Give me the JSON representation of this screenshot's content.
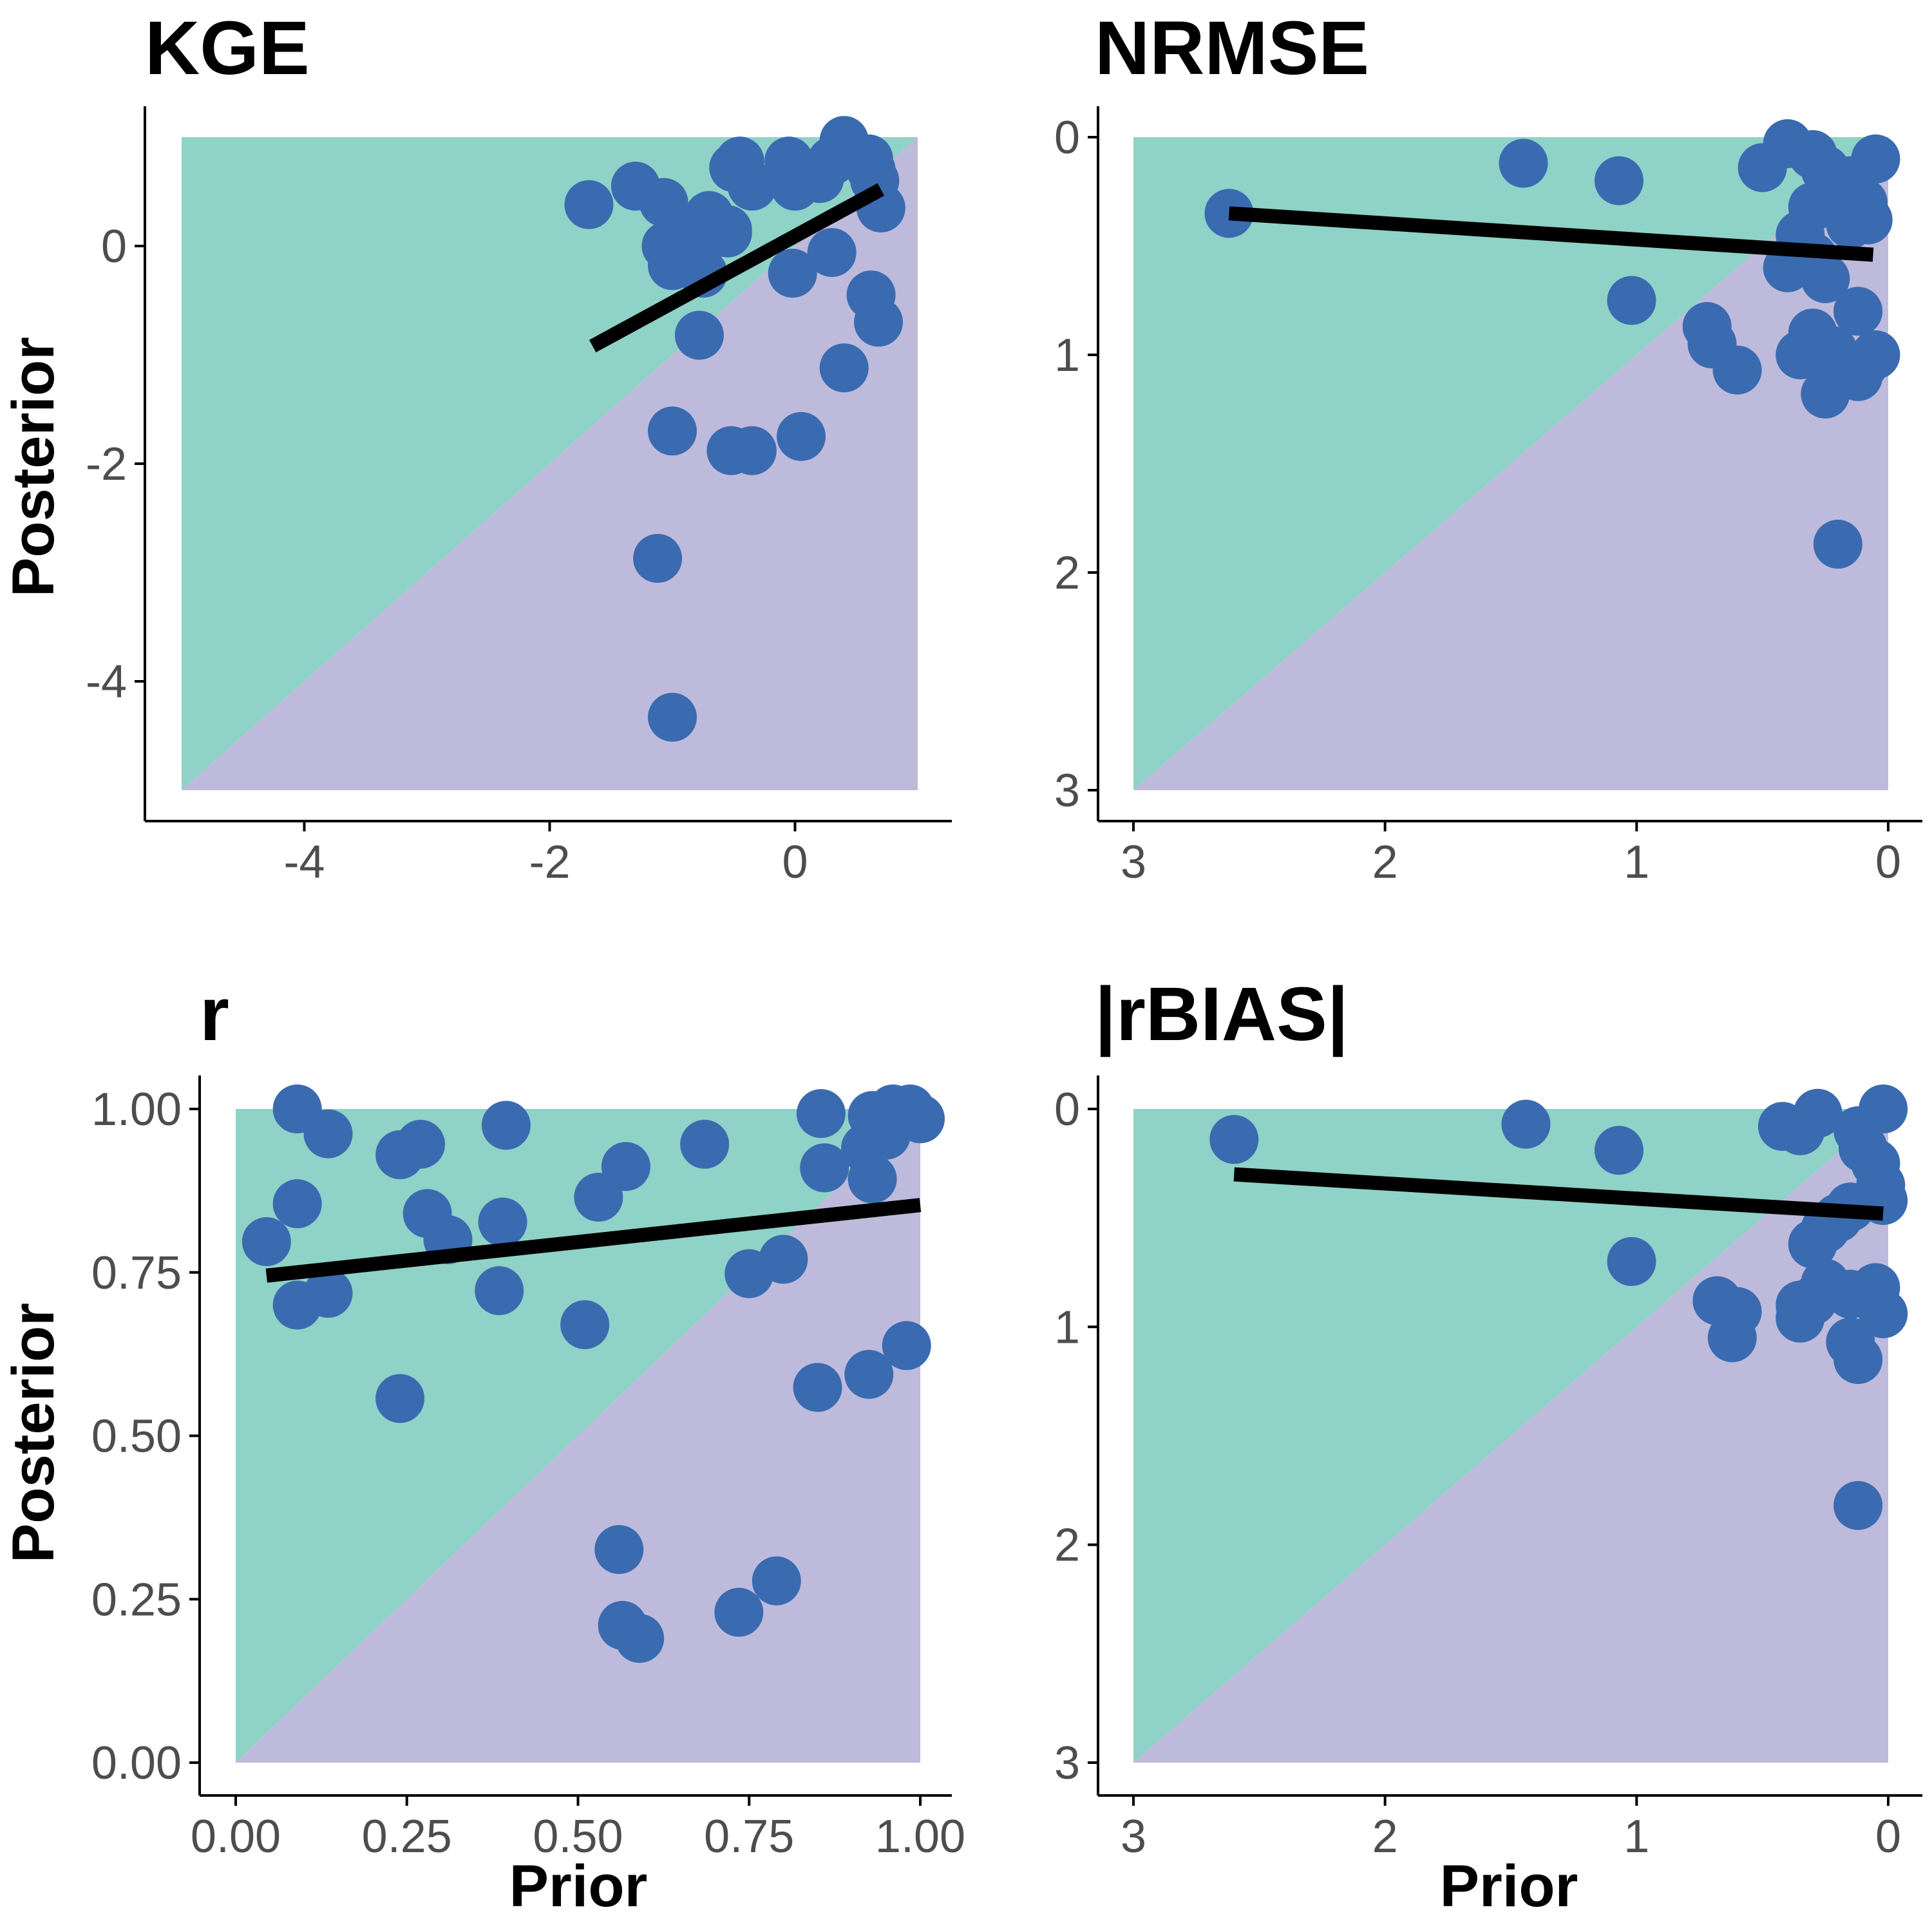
{
  "figure": {
    "xlabel": "Prior",
    "ylabel": "Posterior"
  },
  "colors": {
    "improved_region": "#8fd2c7",
    "worsened_region": "#bebadb",
    "points": "#3a6bb1",
    "fit_line": "#000000",
    "axis": "#000000",
    "tick_text": "#4d4d4d"
  },
  "chart_data": [
    {
      "type": "scatter",
      "title": "KGE",
      "xlabel": "",
      "ylabel": "Posterior",
      "xlim": [
        -5,
        1
      ],
      "ylim": [
        -5,
        1
      ],
      "x_reversed": false,
      "y_reversed": false,
      "xticks": [
        -4,
        -2,
        0
      ],
      "xtick_labels": [
        "-4",
        "-2",
        "0"
      ],
      "yticks": [
        0,
        -2,
        -4
      ],
      "ytick_labels": [
        "0",
        "-2",
        "-4"
      ],
      "grid": false,
      "regions": [
        "above 1:1 line",
        "below 1:1 line"
      ],
      "fit_line": {
        "x": [
          -1.65,
          0.7
        ],
        "y": [
          -0.92,
          0.52
        ]
      },
      "points": {
        "x": [
          -1.68,
          -1.3,
          -1.07,
          -0.92,
          -0.5,
          -0.45,
          -0.35,
          -0.05,
          0.0,
          0.2,
          0.3,
          0.4,
          0.6,
          0.62,
          0.7,
          0.65,
          -0.55,
          -0.7,
          -0.8,
          -1.0,
          -1.05,
          -0.75,
          -0.55,
          -0.02,
          0.3,
          0.62,
          0.68,
          -0.78,
          0.4,
          -1.0,
          -0.52,
          -0.35,
          0.05,
          -1.12,
          -1.0
        ],
        "y": [
          0.38,
          0.55,
          0.4,
          0.06,
          0.72,
          0.78,
          0.55,
          0.78,
          0.55,
          0.62,
          0.78,
          0.97,
          0.8,
          0.7,
          0.35,
          0.6,
          0.12,
          0.28,
          -0.02,
          -0.18,
          0.0,
          -0.25,
          0.15,
          -0.25,
          -0.06,
          -0.45,
          -0.7,
          -0.82,
          -1.12,
          -1.7,
          -1.88,
          -1.88,
          -1.75,
          -2.87,
          -4.33
        ]
      }
    },
    {
      "type": "scatter",
      "title": "NRMSE",
      "xlabel": "",
      "ylabel": "",
      "xlim": [
        3,
        0
      ],
      "ylim": [
        3,
        0
      ],
      "x_reversed": true,
      "y_reversed": true,
      "xticks": [
        3,
        2,
        1,
        0
      ],
      "xtick_labels": [
        "3",
        "2",
        "1",
        "0"
      ],
      "yticks": [
        0,
        1,
        2,
        3
      ],
      "ytick_labels": [
        "0",
        "1",
        "2",
        "3"
      ],
      "grid": false,
      "regions": [
        "above 1:1 line",
        "below 1:1 line"
      ],
      "fit_line": {
        "x": [
          2.62,
          0.06
        ],
        "y": [
          0.35,
          0.54
        ]
      },
      "points": {
        "x": [
          2.62,
          1.45,
          1.07,
          0.4,
          0.5,
          0.3,
          0.25,
          0.15,
          0.1,
          0.05,
          0.2,
          0.3,
          0.35,
          0.08,
          0.15,
          0.4,
          0.3,
          0.25,
          0.12,
          1.02,
          0.7,
          0.72,
          0.6,
          0.3,
          0.35,
          0.22,
          0.1,
          0.05,
          0.25,
          0.12,
          0.2
        ],
        "y": [
          0.35,
          0.12,
          0.2,
          0.03,
          0.14,
          0.08,
          0.15,
          0.2,
          0.3,
          0.1,
          0.25,
          0.32,
          0.45,
          0.38,
          0.4,
          0.6,
          0.55,
          0.65,
          0.8,
          0.75,
          0.95,
          0.87,
          1.07,
          0.9,
          1.0,
          0.98,
          1.05,
          1.0,
          1.18,
          1.1,
          1.87
        ]
      }
    },
    {
      "type": "scatter",
      "title": "r",
      "xlabel": "Prior",
      "ylabel": "Posterior",
      "xlim": [
        0,
        1
      ],
      "ylim": [
        0,
        1
      ],
      "x_reversed": false,
      "y_reversed": false,
      "xticks": [
        0,
        0.25,
        0.5,
        0.75,
        1
      ],
      "xtick_labels": [
        "0.00",
        "0.25",
        "0.50",
        "0.75",
        "1.00"
      ],
      "yticks": [
        1,
        0.75,
        0.5,
        0.25,
        0
      ],
      "ytick_labels": [
        "1.00",
        "0.75",
        "0.50",
        "0.25",
        "0.00"
      ],
      "grid": false,
      "regions": [
        "above 1:1 line",
        "below 1:1 line"
      ],
      "fit_line": {
        "x": [
          0.045,
          1.0
        ],
        "y": [
          0.745,
          0.853
        ]
      },
      "points": {
        "x": [
          0.09,
          0.135,
          0.24,
          0.27,
          0.395,
          0.685,
          0.855,
          0.93,
          0.96,
          0.985,
          1.0,
          0.95,
          0.92,
          0.86,
          0.93,
          0.045,
          0.09,
          0.28,
          0.31,
          0.39,
          0.385,
          0.53,
          0.57,
          0.75,
          0.8,
          0.09,
          0.135,
          0.51,
          0.24,
          0.85,
          0.925,
          0.98,
          0.56,
          0.565,
          0.59,
          0.735,
          0.79
        ],
        "y": [
          1.0,
          0.962,
          0.93,
          0.946,
          0.975,
          0.946,
          0.993,
          0.99,
          1.0,
          1.0,
          0.985,
          0.96,
          0.94,
          0.91,
          0.893,
          0.797,
          0.855,
          0.84,
          0.8,
          0.827,
          0.722,
          0.865,
          0.912,
          0.748,
          0.77,
          0.7,
          0.718,
          0.67,
          0.557,
          0.574,
          0.594,
          0.638,
          0.326,
          0.21,
          0.19,
          0.23,
          0.278
        ]
      }
    },
    {
      "type": "scatter",
      "title": "|rBIAS|",
      "xlabel": "Prior",
      "ylabel": "",
      "xlim": [
        3,
        0
      ],
      "ylim": [
        3,
        0
      ],
      "x_reversed": true,
      "y_reversed": true,
      "xticks": [
        3,
        2,
        1,
        0
      ],
      "xtick_labels": [
        "3",
        "2",
        "1",
        "0"
      ],
      "yticks": [
        0,
        1,
        2,
        3
      ],
      "ytick_labels": [
        "0",
        "1",
        "2",
        "3"
      ],
      "grid": false,
      "regions": [
        "above 1:1 line",
        "below 1:1 line"
      ],
      "fit_line": {
        "x": [
          2.6,
          0.02
        ],
        "y": [
          0.3,
          0.48
        ]
      },
      "points": {
        "x": [
          2.6,
          1.44,
          1.07,
          0.42,
          0.35,
          0.28,
          0.02,
          0.12,
          0.1,
          0.05,
          0.03,
          0.02,
          0.15,
          0.2,
          0.25,
          0.3,
          1.02,
          0.35,
          0.3,
          0.25,
          0.15,
          0.05,
          0.02,
          0.68,
          0.6,
          0.62,
          0.35,
          0.15,
          0.12,
          0.12
        ],
        "y": [
          0.14,
          0.07,
          0.19,
          0.08,
          0.1,
          0.02,
          0.0,
          0.1,
          0.18,
          0.25,
          0.35,
          0.42,
          0.45,
          0.5,
          0.55,
          0.62,
          0.7,
          0.9,
          0.88,
          0.8,
          0.85,
          0.82,
          0.94,
          0.88,
          0.93,
          1.05,
          0.96,
          1.07,
          1.15,
          1.82
        ]
      }
    }
  ]
}
